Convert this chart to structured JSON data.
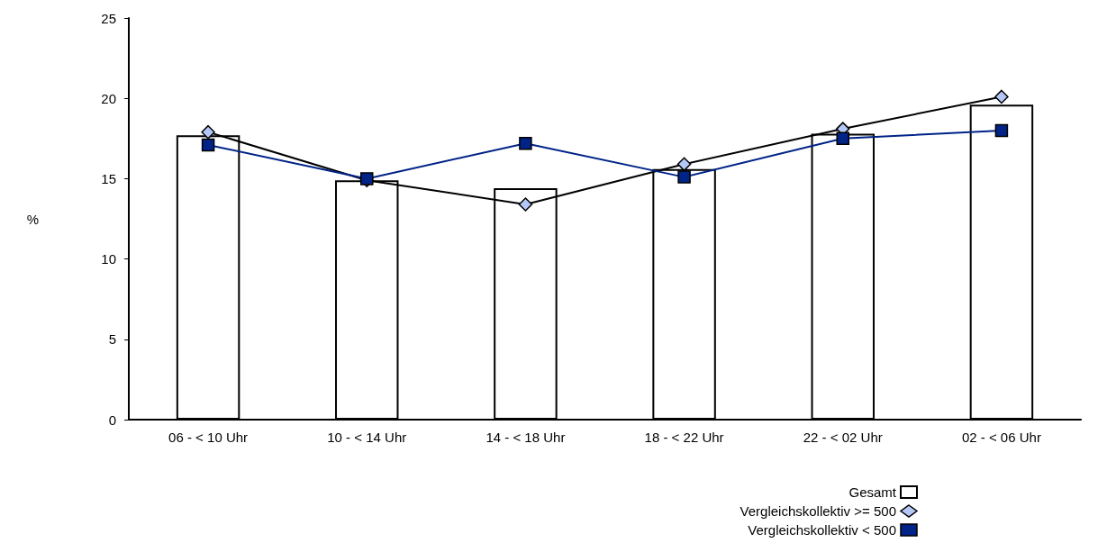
{
  "chart_data": {
    "type": "bar",
    "ylabel": "%",
    "categories": [
      "06 - < 10 Uhr",
      "10 - < 14 Uhr",
      "14 - < 18 Uhr",
      "18 - < 22 Uhr",
      "22 - < 02 Uhr",
      "02 - < 06 Uhr"
    ],
    "series": [
      {
        "name": "Gesamt",
        "color": "#ffffff",
        "values": [
          17.7,
          14.9,
          14.4,
          15.6,
          17.8,
          19.6
        ]
      },
      {
        "name": "Vergleichskollektiv >= 500",
        "type": "line",
        "marker": "diamond",
        "color": "#000000",
        "colors": [
          "#b4c7f7",
          "#b4c7f7",
          "#b4c7f7",
          "#b4c7f7",
          "#b4c7f7",
          "#b4c7f7"
        ],
        "values": [
          17.9,
          14.9,
          13.4,
          15.9,
          18.1,
          20.1
        ]
      },
      {
        "name": "Vergleichskollektiv < 500",
        "type": "line",
        "marker": "square",
        "color": "#002387",
        "values": [
          17.1,
          15.0,
          17.2,
          15.1,
          17.5,
          18.0
        ]
      }
    ],
    "ylim": [
      0,
      25
    ],
    "yticks": [
      0,
      5,
      10,
      15,
      20,
      25
    ],
    "grid": false,
    "legend": "bottom right"
  }
}
